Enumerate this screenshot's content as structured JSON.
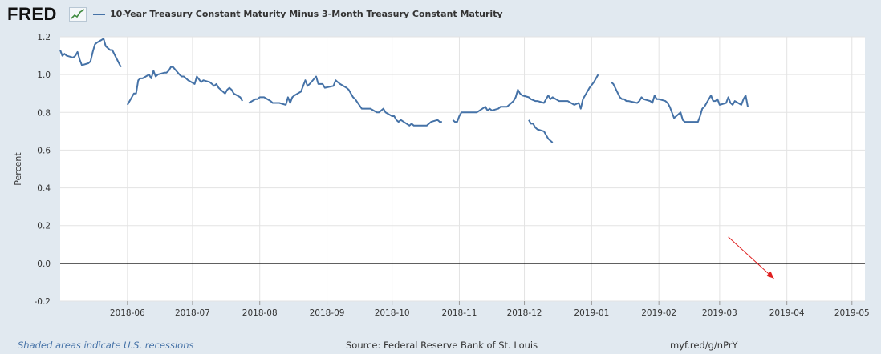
{
  "brand": {
    "logo_text": "FRED",
    "logo_icon": "fred-graph-icon"
  },
  "colors": {
    "series": "#4572a7",
    "background": "#e1e9f0",
    "plot": "#ffffff",
    "zero_line": "#000000",
    "arrow": "#e02020",
    "footer_link": "#4572a7"
  },
  "footer": {
    "recession_note": "Shaded areas indicate U.S. recessions",
    "source": "Source: Federal Reserve Bank of St. Louis",
    "link": "myf.red/g/nPrY"
  },
  "chart_data": {
    "type": "line",
    "title": "",
    "ylabel": "Percent",
    "xlabel": "",
    "ylim": [
      -0.2,
      1.2
    ],
    "yticks": [
      "1.2",
      "1.0",
      "0.8",
      "0.6",
      "0.4",
      "0.2",
      "0.0",
      "-0.2"
    ],
    "xticks": [
      "2018-06",
      "2018-07",
      "2018-08",
      "2018-09",
      "2018-10",
      "2018-11",
      "2018-12",
      "2019-01",
      "2019-02",
      "2019-03",
      "2019-04",
      "2019-05"
    ],
    "xrange": [
      "2018-05-01",
      "2019-05-07"
    ],
    "grid": true,
    "zero_line": true,
    "annotations": [
      {
        "type": "arrow",
        "from": [
          "2019-03-05",
          0.14
        ],
        "to": [
          "2019-03-26",
          -0.08
        ]
      }
    ],
    "series": [
      {
        "name": "10-Year Treasury Constant Maturity Minus 3-Month Treasury Constant Maturity",
        "segments": [
          [
            [
              "2018-05-01",
              1.13
            ],
            [
              "2018-05-02",
              1.1
            ],
            [
              "2018-05-03",
              1.11
            ],
            [
              "2018-05-04",
              1.1
            ],
            [
              "2018-05-07",
              1.09
            ],
            [
              "2018-05-08",
              1.1
            ],
            [
              "2018-05-09",
              1.12
            ],
            [
              "2018-05-10",
              1.08
            ],
            [
              "2018-05-11",
              1.05
            ],
            [
              "2018-05-14",
              1.06
            ],
            [
              "2018-05-15",
              1.07
            ],
            [
              "2018-05-16",
              1.12
            ],
            [
              "2018-05-17",
              1.16
            ],
            [
              "2018-05-18",
              1.17
            ],
            [
              "2018-05-21",
              1.19
            ],
            [
              "2018-05-22",
              1.15
            ],
            [
              "2018-05-23",
              1.14
            ],
            [
              "2018-05-24",
              1.13
            ],
            [
              "2018-05-25",
              1.13
            ],
            [
              "2018-05-29",
              1.04
            ]
          ],
          [
            [
              "2018-06-01",
              0.84
            ],
            [
              "2018-06-04",
              0.9
            ],
            [
              "2018-06-05",
              0.9
            ],
            [
              "2018-06-06",
              0.97
            ],
            [
              "2018-06-07",
              0.98
            ],
            [
              "2018-06-08",
              0.98
            ],
            [
              "2018-06-11",
              1.0
            ],
            [
              "2018-06-12",
              0.98
            ],
            [
              "2018-06-13",
              1.02
            ],
            [
              "2018-06-14",
              0.99
            ],
            [
              "2018-06-15",
              1.0
            ],
            [
              "2018-06-18",
              1.01
            ],
            [
              "2018-06-19",
              1.01
            ],
            [
              "2018-06-20",
              1.02
            ],
            [
              "2018-06-21",
              1.04
            ],
            [
              "2018-06-22",
              1.04
            ],
            [
              "2018-06-25",
              1.0
            ],
            [
              "2018-06-26",
              0.99
            ],
            [
              "2018-06-27",
              0.99
            ],
            [
              "2018-06-28",
              0.98
            ],
            [
              "2018-06-29",
              0.97
            ],
            [
              "2018-07-02",
              0.95
            ],
            [
              "2018-07-03",
              0.99
            ],
            [
              "2018-07-05",
              0.96
            ],
            [
              "2018-07-06",
              0.97
            ],
            [
              "2018-07-09",
              0.96
            ],
            [
              "2018-07-10",
              0.95
            ],
            [
              "2018-07-11",
              0.94
            ],
            [
              "2018-07-12",
              0.95
            ],
            [
              "2018-07-13",
              0.93
            ],
            [
              "2018-07-16",
              0.9
            ],
            [
              "2018-07-17",
              0.92
            ],
            [
              "2018-07-18",
              0.93
            ],
            [
              "2018-07-19",
              0.92
            ],
            [
              "2018-07-20",
              0.9
            ],
            [
              "2018-07-23",
              0.88
            ],
            [
              "2018-07-24",
              0.86
            ]
          ],
          [
            [
              "2018-07-27",
              0.85
            ],
            [
              "2018-07-30",
              0.87
            ],
            [
              "2018-07-31",
              0.87
            ],
            [
              "2018-08-01",
              0.88
            ],
            [
              "2018-08-02",
              0.88
            ],
            [
              "2018-08-03",
              0.88
            ],
            [
              "2018-08-06",
              0.86
            ],
            [
              "2018-08-07",
              0.85
            ],
            [
              "2018-08-08",
              0.85
            ],
            [
              "2018-08-09",
              0.85
            ],
            [
              "2018-08-10",
              0.85
            ],
            [
              "2018-08-13",
              0.84
            ],
            [
              "2018-08-14",
              0.88
            ],
            [
              "2018-08-15",
              0.85
            ],
            [
              "2018-08-16",
              0.88
            ],
            [
              "2018-08-17",
              0.89
            ],
            [
              "2018-08-20",
              0.91
            ],
            [
              "2018-08-21",
              0.94
            ],
            [
              "2018-08-22",
              0.97
            ],
            [
              "2018-08-23",
              0.94
            ],
            [
              "2018-08-24",
              0.95
            ],
            [
              "2018-08-27",
              0.99
            ],
            [
              "2018-08-28",
              0.95
            ],
            [
              "2018-08-29",
              0.95
            ],
            [
              "2018-08-30",
              0.95
            ],
            [
              "2018-08-31",
              0.93
            ],
            [
              "2018-09-04",
              0.94
            ],
            [
              "2018-09-05",
              0.97
            ],
            [
              "2018-09-06",
              0.96
            ],
            [
              "2018-09-07",
              0.95
            ],
            [
              "2018-09-10",
              0.93
            ],
            [
              "2018-09-11",
              0.92
            ],
            [
              "2018-09-12",
              0.9
            ],
            [
              "2018-09-13",
              0.88
            ],
            [
              "2018-09-14",
              0.87
            ],
            [
              "2018-09-17",
              0.82
            ],
            [
              "2018-09-18",
              0.82
            ],
            [
              "2018-09-19",
              0.82
            ],
            [
              "2018-09-20",
              0.82
            ],
            [
              "2018-09-21",
              0.82
            ],
            [
              "2018-09-24",
              0.8
            ],
            [
              "2018-09-25",
              0.8
            ],
            [
              "2018-09-26",
              0.81
            ],
            [
              "2018-09-27",
              0.82
            ],
            [
              "2018-09-28",
              0.8
            ],
            [
              "2018-10-01",
              0.78
            ],
            [
              "2018-10-02",
              0.78
            ],
            [
              "2018-10-03",
              0.76
            ],
            [
              "2018-10-04",
              0.75
            ],
            [
              "2018-10-05",
              0.76
            ],
            [
              "2018-10-09",
              0.73
            ],
            [
              "2018-10-10",
              0.74
            ],
            [
              "2018-10-11",
              0.73
            ],
            [
              "2018-10-12",
              0.73
            ],
            [
              "2018-10-15",
              0.73
            ],
            [
              "2018-10-16",
              0.73
            ],
            [
              "2018-10-17",
              0.73
            ],
            [
              "2018-10-18",
              0.74
            ],
            [
              "2018-10-19",
              0.75
            ],
            [
              "2018-10-22",
              0.76
            ],
            [
              "2018-10-23",
              0.75
            ],
            [
              "2018-10-24",
              0.75
            ]
          ],
          [
            [
              "2018-10-29",
              0.76
            ],
            [
              "2018-10-30",
              0.75
            ],
            [
              "2018-10-31",
              0.75
            ],
            [
              "2018-11-01",
              0.78
            ],
            [
              "2018-11-02",
              0.8
            ],
            [
              "2018-11-05",
              0.8
            ],
            [
              "2018-11-06",
              0.8
            ],
            [
              "2018-11-07",
              0.8
            ],
            [
              "2018-11-08",
              0.8
            ],
            [
              "2018-11-09",
              0.8
            ],
            [
              "2018-11-13",
              0.83
            ],
            [
              "2018-11-14",
              0.81
            ],
            [
              "2018-11-15",
              0.82
            ],
            [
              "2018-11-16",
              0.81
            ],
            [
              "2018-11-19",
              0.82
            ],
            [
              "2018-11-20",
              0.83
            ],
            [
              "2018-11-21",
              0.83
            ],
            [
              "2018-11-23",
              0.83
            ],
            [
              "2018-11-26",
              0.86
            ],
            [
              "2018-11-27",
              0.88
            ],
            [
              "2018-11-28",
              0.92
            ],
            [
              "2018-11-29",
              0.9
            ],
            [
              "2018-11-30",
              0.89
            ],
            [
              "2018-12-03",
              0.88
            ],
            [
              "2018-12-04",
              0.87
            ],
            [
              "2018-12-06",
              0.86
            ],
            [
              "2018-12-07",
              0.86
            ],
            [
              "2018-12-10",
              0.85
            ],
            [
              "2018-12-11",
              0.87
            ],
            [
              "2018-12-12",
              0.89
            ],
            [
              "2018-12-13",
              0.87
            ],
            [
              "2018-12-14",
              0.88
            ],
            [
              "2018-12-17",
              0.86
            ],
            [
              "2018-12-18",
              0.86
            ],
            [
              "2018-12-19",
              0.86
            ],
            [
              "2018-12-20",
              0.86
            ],
            [
              "2018-12-21",
              0.86
            ],
            [
              "2018-12-24",
              0.84
            ],
            [
              "2018-12-26",
              0.85
            ],
            [
              "2018-12-27",
              0.82
            ],
            [
              "2018-12-28",
              0.87
            ],
            [
              "2018-12-31",
              0.93
            ],
            [
              "2019-01-02",
              0.96
            ],
            [
              "2019-01-03",
              0.98
            ],
            [
              "2019-01-04",
              1.0
            ]
          ],
          [
            [
              "2019-01-10",
              0.96
            ],
            [
              "2019-01-11",
              0.95
            ],
            [
              "2019-01-14",
              0.88
            ],
            [
              "2019-01-15",
              0.87
            ],
            [
              "2019-01-16",
              0.87
            ],
            [
              "2019-01-17",
              0.86
            ],
            [
              "2019-01-18",
              0.86
            ],
            [
              "2019-01-22",
              0.85
            ],
            [
              "2019-01-23",
              0.86
            ],
            [
              "2019-01-24",
              0.88
            ],
            [
              "2019-01-25",
              0.87
            ],
            [
              "2019-01-28",
              0.86
            ],
            [
              "2019-01-29",
              0.85
            ],
            [
              "2019-01-30",
              0.89
            ],
            [
              "2019-01-31",
              0.87
            ],
            [
              "2019-02-01",
              0.87
            ],
            [
              "2019-02-04",
              0.86
            ],
            [
              "2019-02-05",
              0.85
            ],
            [
              "2019-02-06",
              0.83
            ],
            [
              "2019-02-07",
              0.8
            ],
            [
              "2019-02-08",
              0.77
            ],
            [
              "2019-02-11",
              0.8
            ],
            [
              "2019-02-12",
              0.76
            ],
            [
              "2019-02-13",
              0.75
            ],
            [
              "2019-02-14",
              0.75
            ],
            [
              "2019-02-15",
              0.75
            ],
            [
              "2019-02-19",
              0.75
            ],
            [
              "2019-02-20",
              0.78
            ],
            [
              "2019-02-21",
              0.82
            ],
            [
              "2019-02-22",
              0.83
            ],
            [
              "2019-02-25",
              0.89
            ],
            [
              "2019-02-26",
              0.86
            ],
            [
              "2019-02-27",
              0.86
            ],
            [
              "2019-02-28",
              0.87
            ],
            [
              "2019-03-01",
              0.84
            ],
            [
              "2019-03-04",
              0.85
            ],
            [
              "2019-03-05",
              0.88
            ],
            [
              "2019-03-06",
              0.85
            ],
            [
              "2019-03-07",
              0.84
            ],
            [
              "2019-03-08",
              0.86
            ],
            [
              "2019-03-11",
              0.84
            ],
            [
              "2019-03-12",
              0.87
            ],
            [
              "2019-03-13",
              0.89
            ],
            [
              "2019-03-14",
              0.83
            ]
          ],
          [
            [
              "2018-12-03",
              0.76
            ],
            [
              "2018-12-04",
              0.74
            ],
            [
              "2018-12-05",
              0.74
            ],
            [
              "2018-12-06",
              0.72
            ],
            [
              "2018-12-07",
              0.71
            ],
            [
              "2018-12-10",
              0.7
            ],
            [
              "2018-12-11",
              0.68
            ],
            [
              "2018-12-12",
              0.66
            ],
            [
              "2018-12-13",
              0.65
            ],
            [
              "2018-12-14",
              0.64
            ]
          ]
        ]
      }
    ]
  }
}
